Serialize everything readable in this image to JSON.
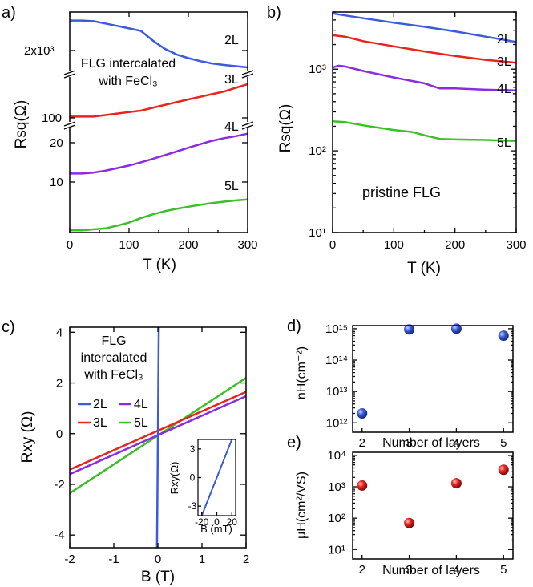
{
  "colors": {
    "blue": "#3b5bdb",
    "red": "#e8241f",
    "purple": "#8a2be2",
    "green": "#3cbf28"
  },
  "chart_data": [
    {
      "id": "a",
      "panel_label": "a)",
      "type": "line",
      "xlabel": "T (K)",
      "ylabel": "Rsq(Ω)",
      "xlim": [
        0,
        300
      ],
      "x_ticks": [
        0,
        100,
        200,
        300
      ],
      "y_tick_labels": [
        "2x10³",
        "100",
        "20",
        "10"
      ],
      "annotation": [
        "FLG intercalated",
        "with FeCl₃"
      ],
      "series": [
        {
          "name": "2L",
          "color": "blue",
          "x": [
            0,
            20,
            40,
            60,
            80,
            100,
            120,
            140,
            160,
            180,
            200,
            220,
            240,
            260,
            280,
            300
          ],
          "y": [
            2650,
            2650,
            2640,
            2600,
            2560,
            2520,
            2480,
            2330,
            2210,
            2130,
            2080,
            2040,
            2010,
            1990,
            1975,
            1960
          ]
        },
        {
          "name": "3L",
          "color": "red",
          "x": [
            0,
            20,
            40,
            60,
            80,
            100,
            120,
            140,
            160,
            180,
            200,
            220,
            240,
            260,
            280,
            300
          ],
          "y": [
            100,
            100,
            100,
            101,
            102,
            103,
            104,
            106,
            108,
            110,
            112,
            114,
            116,
            118,
            121,
            124
          ]
        },
        {
          "name": "4L",
          "color": "purple",
          "x": [
            0,
            20,
            40,
            60,
            80,
            100,
            120,
            140,
            160,
            180,
            200,
            220,
            240,
            260,
            280,
            300
          ],
          "y": [
            12,
            12,
            12.2,
            12.6,
            13.2,
            13.8,
            14.6,
            15.5,
            16.5,
            17.6,
            18.8,
            20,
            21.2,
            22.2,
            23,
            24
          ]
        },
        {
          "name": "5L",
          "color": "green",
          "x": [
            0,
            20,
            40,
            60,
            80,
            100,
            120,
            140,
            160,
            180,
            200,
            220,
            240,
            260,
            280,
            300
          ],
          "y": [
            1.0,
            1.0,
            1.05,
            1.1,
            1.25,
            1.45,
            1.8,
            2.15,
            2.5,
            2.8,
            3.1,
            3.4,
            3.7,
            3.95,
            4.2,
            4.4
          ]
        }
      ]
    },
    {
      "id": "b",
      "panel_label": "b)",
      "type": "line",
      "yscale": "log",
      "xlabel": "T (K)",
      "ylabel": "Rsq(Ω)",
      "xlim": [
        0,
        300
      ],
      "ylim": [
        10,
        5000
      ],
      "x_ticks": [
        0,
        100,
        200,
        300
      ],
      "y_tick_labels": [
        "10¹",
        "10²",
        "10³"
      ],
      "annotation": "pristine FLG",
      "series": [
        {
          "name": "2L",
          "color": "blue",
          "x": [
            0,
            50,
            100,
            150,
            200,
            250,
            300
          ],
          "y": [
            4800,
            4200,
            3700,
            3300,
            2900,
            2500,
            2150
          ]
        },
        {
          "name": "3L",
          "color": "red",
          "x": [
            0,
            20,
            50,
            100,
            150,
            200,
            250,
            300
          ],
          "y": [
            2600,
            2500,
            2200,
            1900,
            1650,
            1450,
            1300,
            1200
          ]
        },
        {
          "name": "4L",
          "color": "purple",
          "x": [
            0,
            10,
            20,
            50,
            100,
            150,
            175,
            200,
            250,
            300
          ],
          "y": [
            1050,
            1100,
            1080,
            950,
            790,
            670,
            580,
            580,
            560,
            550
          ]
        },
        {
          "name": "5L",
          "color": "green",
          "x": [
            0,
            20,
            50,
            100,
            130,
            150,
            175,
            200,
            250,
            300
          ],
          "y": [
            230,
            225,
            205,
            180,
            170,
            155,
            140,
            138,
            136,
            132
          ]
        }
      ]
    },
    {
      "id": "c",
      "panel_label": "c)",
      "type": "line",
      "xlabel": "B (T)",
      "ylabel": "Rxy (Ω)",
      "xlim": [
        -2,
        2
      ],
      "ylim": [
        -4.5,
        4.2
      ],
      "x_ticks": [
        -2,
        -1,
        0,
        1,
        2
      ],
      "y_ticks": [
        -4,
        -2,
        0,
        2,
        4
      ],
      "annotation": [
        "FLG",
        "intercalated",
        "with FeCl₃"
      ],
      "series": [
        {
          "name": "2L",
          "color": "blue",
          "x": [
            -0.0205,
            0.0205
          ],
          "y": [
            -4.5,
            4.2
          ]
        },
        {
          "name": "3L",
          "color": "red",
          "x": [
            -2,
            2
          ],
          "y": [
            -1.42,
            1.65
          ]
        },
        {
          "name": "4L",
          "color": "purple",
          "x": [
            -2,
            2
          ],
          "y": [
            -1.6,
            1.48
          ]
        },
        {
          "name": "5L",
          "color": "green",
          "x": [
            -2,
            2
          ],
          "y": [
            -2.35,
            2.2
          ]
        }
      ],
      "inset": {
        "xlabel": "B (mT)",
        "ylabel": "Rxy(Ω)",
        "xlim": [
          -25,
          25
        ],
        "ylim": [
          -4,
          4
        ],
        "x_ticks": [
          -20,
          0,
          20
        ],
        "y_ticks": [
          -3,
          0,
          3
        ],
        "x": [
          -20,
          20
        ],
        "y": [
          -4,
          4
        ]
      }
    },
    {
      "id": "d",
      "panel_label": "d)",
      "type": "scatter",
      "yscale": "log",
      "xlabel": "Number of layers",
      "ylabel": "nH(cm⁻²)",
      "x_ticks": [
        2,
        3,
        4,
        5
      ],
      "y_tick_labels": [
        "10¹²",
        "10¹³",
        "10¹⁴",
        "10¹⁵"
      ],
      "x": [
        2,
        3,
        4,
        5
      ],
      "y": [
        2000000000000.0,
        950000000000000.0,
        1000000000000000.0,
        600000000000000.0
      ],
      "color": "blue"
    },
    {
      "id": "e",
      "panel_label": "e)",
      "type": "scatter",
      "yscale": "log",
      "xlabel": "Number of layers",
      "ylabel": "μH(cm²/VS)",
      "x_ticks": [
        2,
        3,
        4,
        5
      ],
      "y_tick_labels": [
        "10¹",
        "10²",
        "10³",
        "10⁴"
      ],
      "x": [
        2,
        3,
        4,
        5
      ],
      "y": [
        1100,
        70,
        1300,
        3500
      ],
      "color": "red"
    }
  ]
}
